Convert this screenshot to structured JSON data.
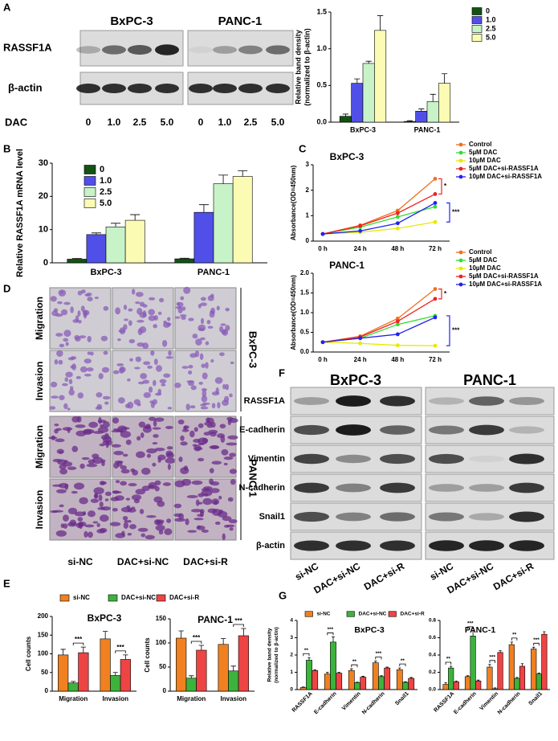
{
  "figure": {
    "panel_labels": [
      "A",
      "B",
      "C",
      "D",
      "E",
      "F",
      "G"
    ],
    "blot_a": {
      "cell_lines": [
        "BxPC-3",
        "PANC-1"
      ],
      "rows": [
        "RASSF1A",
        "β-actin"
      ],
      "treatment": "DAC",
      "lanes": [
        "0",
        "1.0",
        "2.5",
        "5.0",
        "0",
        "1.0",
        "2.5",
        "5.0"
      ]
    },
    "images_d": {
      "rows": [
        "Migration",
        "Invasion",
        "Migration",
        "Invasion"
      ],
      "cell_lines": [
        "BxPC-3",
        "PANC-1"
      ],
      "columns": [
        "si-NC",
        "DAC+si-NC",
        "DAC+si-R"
      ]
    },
    "blot_f": {
      "cell_lines": [
        "BxPC-3",
        "PANC-1"
      ],
      "rows": [
        "RASSF1A",
        "E-cadherin",
        "Vimentin",
        "N-cadherin",
        "Snail1",
        "β-actin"
      ],
      "lanes": [
        "si-NC",
        "DAC+si-NC",
        "DAC+si-R",
        "si-NC",
        "DAC+si-NC",
        "DAC+si-R"
      ]
    }
  },
  "chart_data": [
    {
      "type": "bar",
      "ylabel": [
        "Relative band density",
        "(normalized to β-actin)"
      ],
      "categories": [
        "BxPC-3",
        "PANC-1"
      ],
      "series": [
        {
          "name": "0",
          "color": "#145214",
          "values": [
            0.08,
            0.01
          ],
          "errors": [
            0.03,
            0.01
          ]
        },
        {
          "name": "1.0",
          "color": "#5050e8",
          "values": [
            0.53,
            0.15
          ],
          "errors": [
            0.06,
            0.03
          ]
        },
        {
          "name": "2.5",
          "color": "#c8f2c8",
          "values": [
            0.8,
            0.28
          ],
          "errors": [
            0.03,
            0.1
          ]
        },
        {
          "name": "5.0",
          "color": "#fbfbb4",
          "values": [
            1.25,
            0.53
          ],
          "errors": [
            0.2,
            0.13
          ]
        }
      ],
      "ylim": [
        0,
        1.5
      ],
      "yticks": [
        {
          "value": 0,
          "label": "0.0"
        },
        {
          "value": 0.5,
          "label": "0.5"
        },
        {
          "value": 1,
          "label": "1.0"
        },
        {
          "value": 1.5,
          "label": "1.5"
        }
      ]
    },
    {
      "type": "bar",
      "ylabel": "Relative RASSF1A mRNA level",
      "categories": [
        "BxPC-3",
        "PANC-1"
      ],
      "series": [
        {
          "name": "0",
          "color": "#145214",
          "values": [
            1.1,
            1.2
          ],
          "errors": [
            0.2,
            0.2
          ]
        },
        {
          "name": "1.0",
          "color": "#5050e8",
          "values": [
            8.5,
            15.2
          ],
          "errors": [
            0.5,
            2.3
          ]
        },
        {
          "name": "2.5",
          "color": "#c8f2c8",
          "values": [
            10.8,
            23.8
          ],
          "errors": [
            1.1,
            2.6
          ]
        },
        {
          "name": "5.0",
          "color": "#fbfbb4",
          "values": [
            12.8,
            26
          ],
          "errors": [
            1.7,
            1.7
          ]
        }
      ],
      "ylim": [
        0,
        30
      ],
      "yticks": [
        0,
        10,
        20,
        30
      ]
    },
    {
      "type": "line",
      "title": "BxPC-3",
      "ylabel": "Absorbance(OD=450nm)",
      "categories": [
        "0 h",
        "24 h",
        "48 h",
        "72 h"
      ],
      "series": [
        {
          "name": "Control",
          "color": "#f07020",
          "values": [
            0.28,
            0.62,
            1.2,
            2.45
          ]
        },
        {
          "name": "5µM DAC",
          "color": "#33dd33",
          "values": [
            0.28,
            0.55,
            0.95,
            1.35
          ]
        },
        {
          "name": "10µM DAC",
          "color": "#e8e800",
          "values": [
            0.28,
            0.35,
            0.5,
            0.75
          ]
        },
        {
          "name": "5µM DAC+si-RASSF1A",
          "color": "#ee2222",
          "values": [
            0.28,
            0.6,
            1.1,
            1.85
          ]
        },
        {
          "name": "10µM DAC+si-RASSF1A",
          "color": "#2222ee",
          "values": [
            0.28,
            0.4,
            0.7,
            1.5
          ]
        }
      ],
      "ylim": [
        0,
        3
      ],
      "yticks": [
        0,
        1,
        2,
        3
      ],
      "annotations": [
        "*",
        "***"
      ]
    },
    {
      "type": "line",
      "title": "PANC-1",
      "ylabel": "Absorbance(OD=450nm)",
      "categories": [
        "0 h",
        "24 h",
        "48 h",
        "72 h"
      ],
      "series": [
        {
          "name": "Control",
          "color": "#f07020",
          "values": [
            0.25,
            0.4,
            0.85,
            1.6
          ]
        },
        {
          "name": "5µM DAC",
          "color": "#33dd33",
          "values": [
            0.25,
            0.35,
            0.7,
            0.92
          ]
        },
        {
          "name": "10µM DAC",
          "color": "#e8e800",
          "values": [
            0.25,
            0.22,
            0.17,
            0.16
          ]
        },
        {
          "name": "5µM DAC+si-RASSF1A",
          "color": "#ee2222",
          "values": [
            0.25,
            0.38,
            0.78,
            1.35
          ]
        },
        {
          "name": "10µM DAC+si-RASSF1A",
          "color": "#2222ee",
          "values": [
            0.25,
            0.35,
            0.45,
            0.88
          ]
        }
      ],
      "ylim": [
        0,
        2
      ],
      "yticks": [
        {
          "value": 0,
          "label": "0.0"
        },
        {
          "value": 0.5,
          "label": "0.5"
        },
        {
          "value": 1,
          "label": "1.0"
        },
        {
          "value": 1.5,
          "label": "1.5"
        },
        {
          "value": 2,
          "label": "2.0"
        }
      ],
      "annotations": [
        "*",
        "***"
      ]
    },
    {
      "type": "bar",
      "title": "BxPC-3",
      "ylabel": "Cell counts",
      "categories": [
        "Migration",
        "Invasion"
      ],
      "series": [
        {
          "name": "si-NC",
          "color": "#f08020",
          "values": [
            97,
            140
          ],
          "errors": [
            15,
            20
          ]
        },
        {
          "name": "DAC+si-NC",
          "color": "#3cb33c",
          "values": [
            22,
            42
          ],
          "errors": [
            4,
            8
          ]
        },
        {
          "name": "DAC+si-R",
          "color": "#ee4444",
          "values": [
            103,
            85
          ],
          "errors": [
            15,
            12
          ]
        }
      ],
      "ylim": [
        0,
        200
      ],
      "yticks": [
        0,
        50,
        100,
        150,
        200
      ],
      "annotations": [
        "***",
        "***"
      ]
    },
    {
      "type": "bar",
      "title": "PANC-1",
      "ylabel": "Cell counts",
      "categories": [
        "Migration",
        "Invasion"
      ],
      "series": [
        {
          "color": "#f08020",
          "values": [
            110,
            97
          ],
          "errors": [
            15,
            12
          ]
        },
        {
          "color": "#3cb33c",
          "values": [
            27,
            42
          ],
          "errors": [
            5,
            10
          ]
        },
        {
          "color": "#ee4444",
          "values": [
            85,
            115
          ],
          "errors": [
            10,
            15
          ]
        }
      ],
      "ylim": [
        0,
        150
      ],
      "yticks": [
        0,
        50,
        100,
        150
      ],
      "annotations": [
        "***",
        "***"
      ]
    },
    {
      "type": "bar",
      "title": "BxPC-3",
      "ylabel": [
        "Relative band density",
        "(normalized to β-actin)"
      ],
      "categories": [
        "RASSF1A",
        "E-cadherin",
        "Vimentin",
        "N-cadherin",
        "Snail1"
      ],
      "series": [
        {
          "name": "si-NC",
          "color": "#f08020",
          "values": [
            0.12,
            0.9,
            1.1,
            1.55,
            1.15
          ],
          "errors": [
            0.03,
            0.1,
            0.1,
            0.1,
            0.1
          ]
        },
        {
          "name": "DAC+si-NC",
          "color": "#3cb33c",
          "values": [
            1.7,
            2.75,
            0.4,
            0.75,
            0.42
          ],
          "errors": [
            0.15,
            0.3,
            0.03,
            0.05,
            0.03
          ]
        },
        {
          "name": "DAC+si-R",
          "color": "#ee4444",
          "values": [
            1.1,
            0.95,
            0.72,
            1.25,
            0.65
          ],
          "errors": [
            0.05,
            0.05,
            0.05,
            0.05,
            0.05
          ]
        }
      ],
      "ylim": [
        0,
        4
      ],
      "yticks": [
        0,
        1,
        2,
        3,
        4
      ],
      "annotations": [
        "**",
        "***",
        "**",
        "***",
        "**"
      ]
    },
    {
      "type": "bar",
      "title": "PANC-1",
      "categories": [
        "RASSF1A",
        "E-cadherin",
        "Vimentin",
        "N-cadherin",
        "Snail1"
      ],
      "series": [
        {
          "color": "#f08020",
          "values": [
            0.06,
            0.15,
            0.26,
            0.52,
            0.47
          ],
          "errors": [
            0.02,
            0.01,
            0.03,
            0.03,
            0.02
          ]
        },
        {
          "color": "#3cb33c",
          "values": [
            0.25,
            0.62,
            0.01,
            0.13,
            0.18
          ],
          "errors": [
            0.02,
            0.06,
            0.01,
            0.01,
            0.01
          ]
        },
        {
          "color": "#ee4444",
          "values": [
            0.09,
            0.1,
            0.43,
            0.27,
            0.64
          ],
          "errors": [
            0.01,
            0.01,
            0.02,
            0.03,
            0.03
          ]
        }
      ],
      "ylim": [
        0,
        0.8
      ],
      "yticks": [
        {
          "value": 0,
          "label": "0.0"
        },
        {
          "value": 0.2,
          "label": "0.2"
        },
        {
          "value": 0.4,
          "label": "0.4"
        },
        {
          "value": 0.6,
          "label": "0.6"
        },
        {
          "value": 0.8,
          "label": "0.8"
        }
      ],
      "annotations": [
        "**",
        "***",
        "***",
        "**",
        "***"
      ]
    }
  ]
}
